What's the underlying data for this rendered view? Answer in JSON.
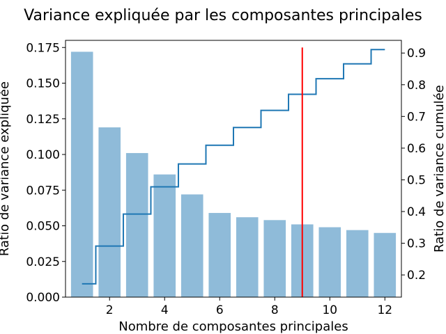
{
  "chart_data": {
    "type": "bar",
    "title": "Variance expliquée par les composantes principales",
    "xlabel": "Nombre de composantes principales",
    "ylabel": "Ratio de variance expliquée",
    "y2label": "Ratio de variance cumulée",
    "x": [
      1,
      2,
      3,
      4,
      5,
      6,
      7,
      8,
      9,
      10,
      11,
      12
    ],
    "xlim": [
      0.4,
      12.6
    ],
    "ylim": [
      0,
      0.18
    ],
    "y2lim": [
      0.13,
      0.94
    ],
    "x_ticks": [
      2,
      4,
      6,
      8,
      10,
      12
    ],
    "y_ticks": [
      "0.000",
      "0.025",
      "0.050",
      "0.075",
      "0.100",
      "0.125",
      "0.150",
      "0.175"
    ],
    "y2_ticks": [
      "0.2",
      "0.3",
      "0.4",
      "0.5",
      "0.6",
      "0.7",
      "0.8",
      "0.9"
    ],
    "grid": false,
    "series": [
      {
        "kind": "bar",
        "axis": "left",
        "color": "#8fbbd9",
        "values": [
          0.172,
          0.119,
          0.101,
          0.086,
          0.072,
          0.059,
          0.056,
          0.054,
          0.051,
          0.049,
          0.047,
          0.045
        ]
      },
      {
        "kind": "step",
        "axis": "right",
        "color": "#1f77b4",
        "values": [
          0.172,
          0.291,
          0.392,
          0.478,
          0.55,
          0.609,
          0.665,
          0.719,
          0.77,
          0.819,
          0.866,
          0.911
        ]
      }
    ],
    "annotations": [
      {
        "kind": "vline",
        "x": 9,
        "y_from": 0,
        "y_to": 0.175,
        "color": "#ff0000"
      }
    ]
  }
}
